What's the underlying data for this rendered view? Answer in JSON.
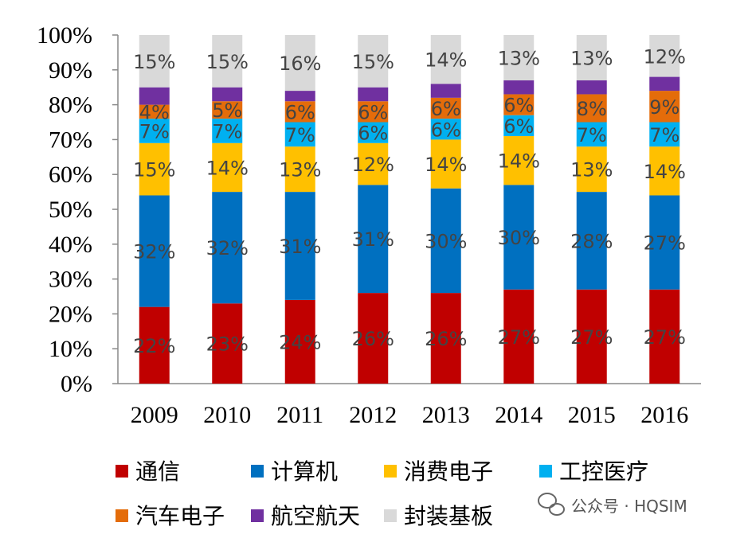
{
  "chart_data": {
    "type": "bar",
    "stacked": true,
    "ylim": [
      0,
      100
    ],
    "yticks": [
      "0%",
      "10%",
      "20%",
      "30%",
      "40%",
      "50%",
      "60%",
      "70%",
      "80%",
      "90%",
      "100%"
    ],
    "categories": [
      "2009",
      "2010",
      "2011",
      "2012",
      "2013",
      "2014",
      "2015",
      "2016"
    ],
    "series": [
      {
        "name": "通信",
        "color": "#c00000",
        "values": [
          22,
          23,
          24,
          26,
          26,
          27,
          27,
          27
        ],
        "labels": [
          "22%",
          "23%",
          "24%",
          "26%",
          "26%",
          "27%",
          "27%",
          "27%"
        ]
      },
      {
        "name": "计算机",
        "color": "#0070c0",
        "values": [
          32,
          32,
          31,
          31,
          30,
          30,
          28,
          27
        ],
        "labels": [
          "32%",
          "32%",
          "31%",
          "31%",
          "30%",
          "30%",
          "28%",
          "27%"
        ]
      },
      {
        "name": "消费电子",
        "color": "#ffc000",
        "values": [
          15,
          14,
          13,
          12,
          14,
          14,
          13,
          14
        ],
        "labels": [
          "15%",
          "14%",
          "13%",
          "12%",
          "14%",
          "14%",
          "13%",
          "14%"
        ]
      },
      {
        "name": "工控医疗",
        "color": "#00b0f0",
        "values": [
          7,
          7,
          7,
          6,
          6,
          6,
          7,
          7
        ],
        "labels": [
          "7%",
          "7%",
          "7%",
          "6%",
          "6%",
          "6%",
          "7%",
          "7%"
        ]
      },
      {
        "name": "汽车电子",
        "color": "#e46c0a",
        "values": [
          4,
          5,
          6,
          6,
          6,
          6,
          8,
          9
        ],
        "labels": [
          "4%",
          "5%",
          "6%",
          "6%",
          "6%",
          "6%",
          "8%",
          "9%"
        ]
      },
      {
        "name": "航空航天",
        "color": "#7030a0",
        "values": [
          5,
          4,
          3,
          4,
          4,
          4,
          4,
          4
        ],
        "labels": [
          "",
          "",
          "",
          "",
          "",
          "",
          "",
          ""
        ]
      },
      {
        "name": "封装基板",
        "color": "#d9d9d9",
        "values": [
          15,
          15,
          16,
          15,
          14,
          13,
          13,
          12
        ],
        "labels": [
          "15%",
          "15%",
          "16%",
          "15%",
          "14%",
          "13%",
          "13%",
          "12%"
        ]
      }
    ]
  },
  "watermark": {
    "text": "公众号 · HQSIM"
  }
}
